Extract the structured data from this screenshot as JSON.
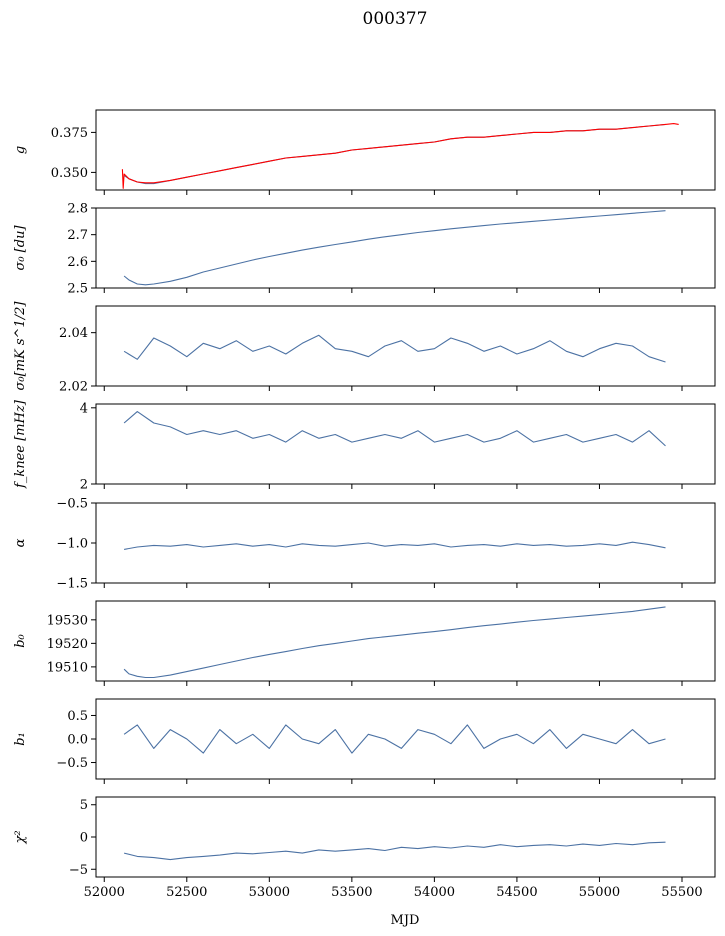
{
  "figure": {
    "title": "000377",
    "xlabel": "MJD",
    "colors": {
      "line": "#4c72a4",
      "overlay": "#ff0000",
      "frame": "#000000"
    }
  },
  "chart_data": [
    {
      "type": "line",
      "name": "g",
      "ylabel": "g",
      "xlim": [
        51950,
        55700
      ],
      "ylim": [
        0.339,
        0.389
      ],
      "yticks": [
        0.35,
        0.375
      ],
      "ytick_labels": [
        "0.350",
        "0.375"
      ],
      "series": [
        {
          "name": "",
          "color": "#4c72a4",
          "x": [
            52120,
            52150,
            52200,
            52250,
            52300,
            52400,
            52500,
            52600,
            52700,
            52800,
            52900,
            53000,
            53100,
            53200,
            53300,
            53400,
            53500,
            53600,
            53700,
            53800,
            53900,
            54000,
            54100,
            54200,
            54300,
            54400,
            54500,
            54600,
            54700,
            54800,
            54900,
            55000,
            55100,
            55200,
            55300,
            55400
          ],
          "y": [
            0.348,
            0.346,
            0.344,
            0.343,
            0.343,
            0.345,
            0.347,
            0.349,
            0.351,
            0.353,
            0.355,
            0.357,
            0.359,
            0.36,
            0.361,
            0.362,
            0.364,
            0.365,
            0.366,
            0.367,
            0.368,
            0.369,
            0.371,
            0.372,
            0.372,
            0.373,
            0.374,
            0.375,
            0.375,
            0.376,
            0.376,
            0.377,
            0.377,
            0.378,
            0.379,
            0.38
          ]
        },
        {
          "name": "",
          "color": "#ff0000",
          "x": [
            52110,
            52115,
            52120,
            52150,
            52200,
            52250,
            52300,
            52400,
            52500,
            52600,
            52700,
            52800,
            52900,
            53000,
            53100,
            53200,
            53300,
            53400,
            53500,
            53600,
            53700,
            53800,
            53900,
            54000,
            54100,
            54200,
            54300,
            54400,
            54500,
            54600,
            54700,
            54800,
            54900,
            55000,
            55100,
            55200,
            55300,
            55400,
            55450,
            55480
          ],
          "y": [
            0.352,
            0.34,
            0.349,
            0.346,
            0.344,
            0.3435,
            0.3435,
            0.345,
            0.347,
            0.349,
            0.351,
            0.353,
            0.355,
            0.357,
            0.359,
            0.36,
            0.361,
            0.362,
            0.364,
            0.365,
            0.366,
            0.367,
            0.368,
            0.369,
            0.371,
            0.372,
            0.372,
            0.373,
            0.374,
            0.375,
            0.375,
            0.376,
            0.376,
            0.377,
            0.377,
            0.378,
            0.379,
            0.38,
            0.3805,
            0.38
          ]
        }
      ]
    },
    {
      "type": "line",
      "name": "sigma0-du",
      "ylabel": "σ₀ [du]",
      "xlim": [
        51950,
        55700
      ],
      "ylim": [
        2.5,
        2.8
      ],
      "yticks": [
        2.5,
        2.6,
        2.7,
        2.8
      ],
      "ytick_labels": [
        "2.5",
        "2.6",
        "2.7",
        "2.8"
      ],
      "series": [
        {
          "name": "",
          "color": "#4c72a4",
          "x": [
            52120,
            52150,
            52200,
            52250,
            52300,
            52400,
            52500,
            52600,
            52700,
            52800,
            52900,
            53000,
            53100,
            53200,
            53300,
            53400,
            53500,
            53600,
            53700,
            53800,
            53900,
            54000,
            54100,
            54200,
            54300,
            54400,
            54500,
            54600,
            54700,
            54800,
            54900,
            55000,
            55100,
            55200,
            55300,
            55400
          ],
          "y": [
            2.545,
            2.53,
            2.515,
            2.512,
            2.515,
            2.525,
            2.54,
            2.56,
            2.575,
            2.59,
            2.605,
            2.618,
            2.63,
            2.642,
            2.653,
            2.663,
            2.673,
            2.683,
            2.692,
            2.7,
            2.708,
            2.715,
            2.722,
            2.728,
            2.734,
            2.74,
            2.745,
            2.75,
            2.755,
            2.76,
            2.765,
            2.77,
            2.775,
            2.78,
            2.785,
            2.79
          ]
        }
      ]
    },
    {
      "type": "line",
      "name": "sigma0-mks",
      "ylabel": "σ₀[mK s^1/2]",
      "xlim": [
        51950,
        55700
      ],
      "ylim": [
        2.02,
        2.05
      ],
      "yticks": [
        2.02,
        2.04
      ],
      "ytick_labels": [
        "2.02",
        "2.04"
      ],
      "series": [
        {
          "name": "",
          "color": "#4c72a4",
          "x": [
            52120,
            52200,
            52300,
            52400,
            52500,
            52600,
            52700,
            52800,
            52900,
            53000,
            53100,
            53200,
            53300,
            53400,
            53500,
            53600,
            53700,
            53800,
            53900,
            54000,
            54100,
            54200,
            54300,
            54400,
            54500,
            54600,
            54700,
            54800,
            54900,
            55000,
            55100,
            55200,
            55300,
            55400
          ],
          "y": [
            2.033,
            2.03,
            2.038,
            2.035,
            2.031,
            2.036,
            2.034,
            2.037,
            2.033,
            2.035,
            2.032,
            2.036,
            2.039,
            2.034,
            2.033,
            2.031,
            2.035,
            2.037,
            2.033,
            2.034,
            2.038,
            2.036,
            2.033,
            2.035,
            2.032,
            2.034,
            2.037,
            2.033,
            2.031,
            2.034,
            2.036,
            2.035,
            2.031,
            2.029
          ]
        }
      ]
    },
    {
      "type": "line",
      "name": "fknee",
      "ylabel": "f_knee [mHz]",
      "xlim": [
        51950,
        55700
      ],
      "ylim": [
        2.0,
        4.1
      ],
      "yticks": [
        2,
        4
      ],
      "ytick_labels": [
        "2",
        "4"
      ],
      "series": [
        {
          "name": "",
          "color": "#4c72a4",
          "x": [
            52120,
            52200,
            52300,
            52400,
            52500,
            52600,
            52700,
            52800,
            52900,
            53000,
            53100,
            53200,
            53300,
            53400,
            53500,
            53600,
            53700,
            53800,
            53900,
            54000,
            54100,
            54200,
            54300,
            54400,
            54500,
            54600,
            54700,
            54800,
            54900,
            55000,
            55100,
            55200,
            55300,
            55400
          ],
          "y": [
            3.6,
            3.9,
            3.6,
            3.5,
            3.3,
            3.4,
            3.3,
            3.4,
            3.2,
            3.3,
            3.1,
            3.4,
            3.2,
            3.3,
            3.1,
            3.2,
            3.3,
            3.2,
            3.4,
            3.1,
            3.2,
            3.3,
            3.1,
            3.2,
            3.4,
            3.1,
            3.2,
            3.3,
            3.1,
            3.2,
            3.3,
            3.1,
            3.4,
            3.0
          ]
        }
      ]
    },
    {
      "type": "line",
      "name": "alpha",
      "ylabel": "α",
      "xlim": [
        51950,
        55700
      ],
      "ylim": [
        -1.5,
        -0.5
      ],
      "yticks": [
        -1.5,
        -1.0,
        -0.5
      ],
      "ytick_labels": [
        "−1.5",
        "−1.0",
        "−0.5"
      ],
      "series": [
        {
          "name": "",
          "color": "#4c72a4",
          "x": [
            52120,
            52200,
            52300,
            52400,
            52500,
            52600,
            52700,
            52800,
            52900,
            53000,
            53100,
            53200,
            53300,
            53400,
            53500,
            53600,
            53700,
            53800,
            53900,
            54000,
            54100,
            54200,
            54300,
            54400,
            54500,
            54600,
            54700,
            54800,
            54900,
            55000,
            55100,
            55200,
            55300,
            55400
          ],
          "y": [
            -1.08,
            -1.05,
            -1.03,
            -1.04,
            -1.02,
            -1.05,
            -1.03,
            -1.01,
            -1.04,
            -1.02,
            -1.05,
            -1.01,
            -1.03,
            -1.04,
            -1.02,
            -1.0,
            -1.04,
            -1.02,
            -1.03,
            -1.01,
            -1.05,
            -1.03,
            -1.02,
            -1.04,
            -1.01,
            -1.03,
            -1.02,
            -1.04,
            -1.03,
            -1.01,
            -1.03,
            -0.99,
            -1.02,
            -1.06
          ]
        }
      ]
    },
    {
      "type": "line",
      "name": "b0",
      "ylabel": "b₀",
      "xlim": [
        51950,
        55700
      ],
      "ylim": [
        19504,
        19538
      ],
      "yticks": [
        19510,
        19520,
        19530
      ],
      "ytick_labels": [
        "19510",
        "19520",
        "19530"
      ],
      "series": [
        {
          "name": "",
          "color": "#4c72a4",
          "x": [
            52120,
            52150,
            52200,
            52250,
            52300,
            52400,
            52500,
            52600,
            52700,
            52800,
            52900,
            53000,
            53100,
            53200,
            53300,
            53400,
            53500,
            53600,
            53700,
            53800,
            53900,
            54000,
            54100,
            54200,
            54300,
            54400,
            54500,
            54600,
            54700,
            54800,
            54900,
            55000,
            55100,
            55200,
            55300,
            55400
          ],
          "y": [
            19509,
            19507,
            19506,
            19505.5,
            19505.5,
            19506.5,
            19508,
            19509.5,
            19511,
            19512.5,
            19514,
            19515.3,
            19516.5,
            19517.8,
            19519,
            19520,
            19521,
            19522,
            19522.8,
            19523.5,
            19524.3,
            19525,
            19525.8,
            19526.7,
            19527.5,
            19528.2,
            19529,
            19529.7,
            19530.3,
            19531,
            19531.6,
            19532.2,
            19532.9,
            19533.6,
            19534.5,
            19535.5
          ]
        }
      ]
    },
    {
      "type": "line",
      "name": "b1",
      "ylabel": "b₁",
      "xlim": [
        51950,
        55700
      ],
      "ylim": [
        -0.85,
        0.85
      ],
      "yticks": [
        -0.5,
        0.0,
        0.5
      ],
      "ytick_labels": [
        "−0.5",
        "0.0",
        "0.5"
      ],
      "series": [
        {
          "name": "",
          "color": "#4c72a4",
          "x": [
            52120,
            52200,
            52300,
            52400,
            52500,
            52600,
            52700,
            52800,
            52900,
            53000,
            53100,
            53200,
            53300,
            53400,
            53500,
            53600,
            53700,
            53800,
            53900,
            54000,
            54100,
            54200,
            54300,
            54400,
            54500,
            54600,
            54700,
            54800,
            54900,
            55000,
            55100,
            55200,
            55300,
            55400
          ],
          "y": [
            0.1,
            0.3,
            -0.2,
            0.2,
            0.0,
            -0.3,
            0.2,
            -0.1,
            0.1,
            -0.2,
            0.3,
            0.0,
            -0.1,
            0.2,
            -0.3,
            0.1,
            0.0,
            -0.2,
            0.2,
            0.1,
            -0.1,
            0.3,
            -0.2,
            0.0,
            0.1,
            -0.1,
            0.2,
            -0.2,
            0.1,
            0.0,
            -0.1,
            0.2,
            -0.1,
            0.0
          ]
        }
      ]
    },
    {
      "type": "line",
      "name": "chi2",
      "ylabel": "χ²",
      "xlim": [
        51950,
        55700
      ],
      "ylim": [
        -6.2,
        6.2
      ],
      "yticks": [
        -5,
        0,
        5
      ],
      "ytick_labels": [
        "−5",
        "0",
        "5"
      ],
      "xticks": [
        52000,
        52500,
        53000,
        53500,
        54000,
        54500,
        55000,
        55500
      ],
      "xtick_labels": [
        "52000",
        "52500",
        "53000",
        "53500",
        "54000",
        "54500",
        "55000",
        "55500"
      ],
      "series": [
        {
          "name": "",
          "color": "#4c72a4",
          "x": [
            52120,
            52200,
            52300,
            52400,
            52500,
            52600,
            52700,
            52800,
            52900,
            53000,
            53100,
            53200,
            53300,
            53400,
            53500,
            53600,
            53700,
            53800,
            53900,
            54000,
            54100,
            54200,
            54300,
            54400,
            54500,
            54600,
            54700,
            54800,
            54900,
            55000,
            55100,
            55200,
            55300,
            55400
          ],
          "y": [
            -2.5,
            -3.0,
            -3.2,
            -3.5,
            -3.2,
            -3.0,
            -2.8,
            -2.5,
            -2.6,
            -2.4,
            -2.2,
            -2.5,
            -2.0,
            -2.2,
            -2.0,
            -1.8,
            -2.1,
            -1.6,
            -1.8,
            -1.5,
            -1.7,
            -1.4,
            -1.6,
            -1.2,
            -1.5,
            -1.3,
            -1.2,
            -1.4,
            -1.1,
            -1.3,
            -1.0,
            -1.2,
            -0.9,
            -0.8
          ]
        }
      ]
    }
  ]
}
